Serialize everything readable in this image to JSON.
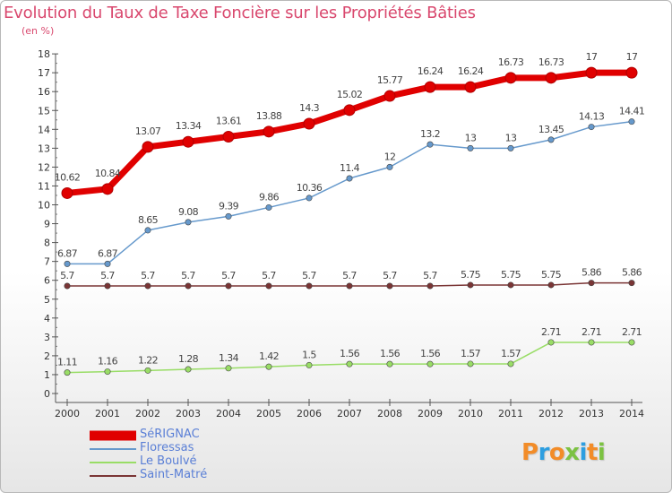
{
  "header": {
    "title": "Evolution du Taux de Taxe Foncière sur les Propriétés Bâties",
    "unit": "(en %)"
  },
  "logo": {
    "letters": [
      "P",
      "r",
      "o",
      "x",
      "i",
      "t",
      "i"
    ],
    "colors": [
      "#f28c28",
      "#2d9ee0",
      "#f28c28",
      "#7cc242",
      "#2d9ee0",
      "#f28c28",
      "#7cc242"
    ]
  },
  "chart_data": {
    "type": "line",
    "x": [
      "2000",
      "2001",
      "2002",
      "2003",
      "2004",
      "2005",
      "2006",
      "2007",
      "2008",
      "2009",
      "2010",
      "2011",
      "2012",
      "2013",
      "2014"
    ],
    "ylim": [
      0,
      18
    ],
    "yticks": [
      0,
      1,
      2,
      3,
      4,
      5,
      6,
      7,
      8,
      9,
      10,
      11,
      12,
      13,
      14,
      15,
      16,
      17,
      18
    ],
    "grid": false,
    "legend_position": "bottom-left",
    "series": [
      {
        "name": "SéRIGNAC",
        "color": "#e00000",
        "values": [
          10.62,
          10.84,
          13.07,
          13.34,
          13.61,
          13.88,
          14.3,
          15.02,
          15.77,
          16.24,
          16.24,
          16.73,
          16.73,
          17,
          17
        ],
        "labels": [
          "10.62",
          "10.84",
          "13.07",
          "13.34",
          "13.61",
          "13.88",
          "14.3",
          "15.02",
          "15.77",
          "16.24",
          "16.24",
          "16.73",
          "16.73",
          "17",
          "17"
        ]
      },
      {
        "name": "Floressas",
        "color": "#6699cc",
        "values": [
          6.87,
          6.87,
          8.65,
          9.08,
          9.39,
          9.86,
          10.36,
          11.4,
          12,
          13.2,
          13,
          13,
          13.45,
          14.13,
          14.41
        ],
        "labels": [
          "6.87",
          "6.87",
          "8.65",
          "9.08",
          "9.39",
          "9.86",
          "10.36",
          "11.4",
          "12",
          "13.2",
          "13",
          "13",
          "13.45",
          "14.13",
          "14.41"
        ]
      },
      {
        "name": "Le Boulvé",
        "color": "#99dd66",
        "values": [
          1.11,
          1.16,
          1.22,
          1.28,
          1.34,
          1.42,
          1.5,
          1.56,
          1.56,
          1.56,
          1.57,
          1.57,
          2.71,
          2.71,
          2.71
        ],
        "labels": [
          "1.11",
          "1.16",
          "1.22",
          "1.28",
          "1.34",
          "1.42",
          "1.5",
          "1.56",
          "1.56",
          "1.56",
          "1.57",
          "1.57",
          "2.71",
          "2.71",
          "2.71"
        ]
      },
      {
        "name": "Saint-Matré",
        "color": "#7a3535",
        "values": [
          5.7,
          5.7,
          5.7,
          5.7,
          5.7,
          5.7,
          5.7,
          5.7,
          5.7,
          5.7,
          5.75,
          5.75,
          5.75,
          5.86,
          5.86
        ],
        "labels": [
          "5.7",
          "5.7",
          "5.7",
          "5.7",
          "5.7",
          "5.7",
          "5.7",
          "5.7",
          "5.7",
          "5.7",
          "5.75",
          "5.75",
          "5.75",
          "5.86",
          "5.86"
        ]
      }
    ]
  }
}
